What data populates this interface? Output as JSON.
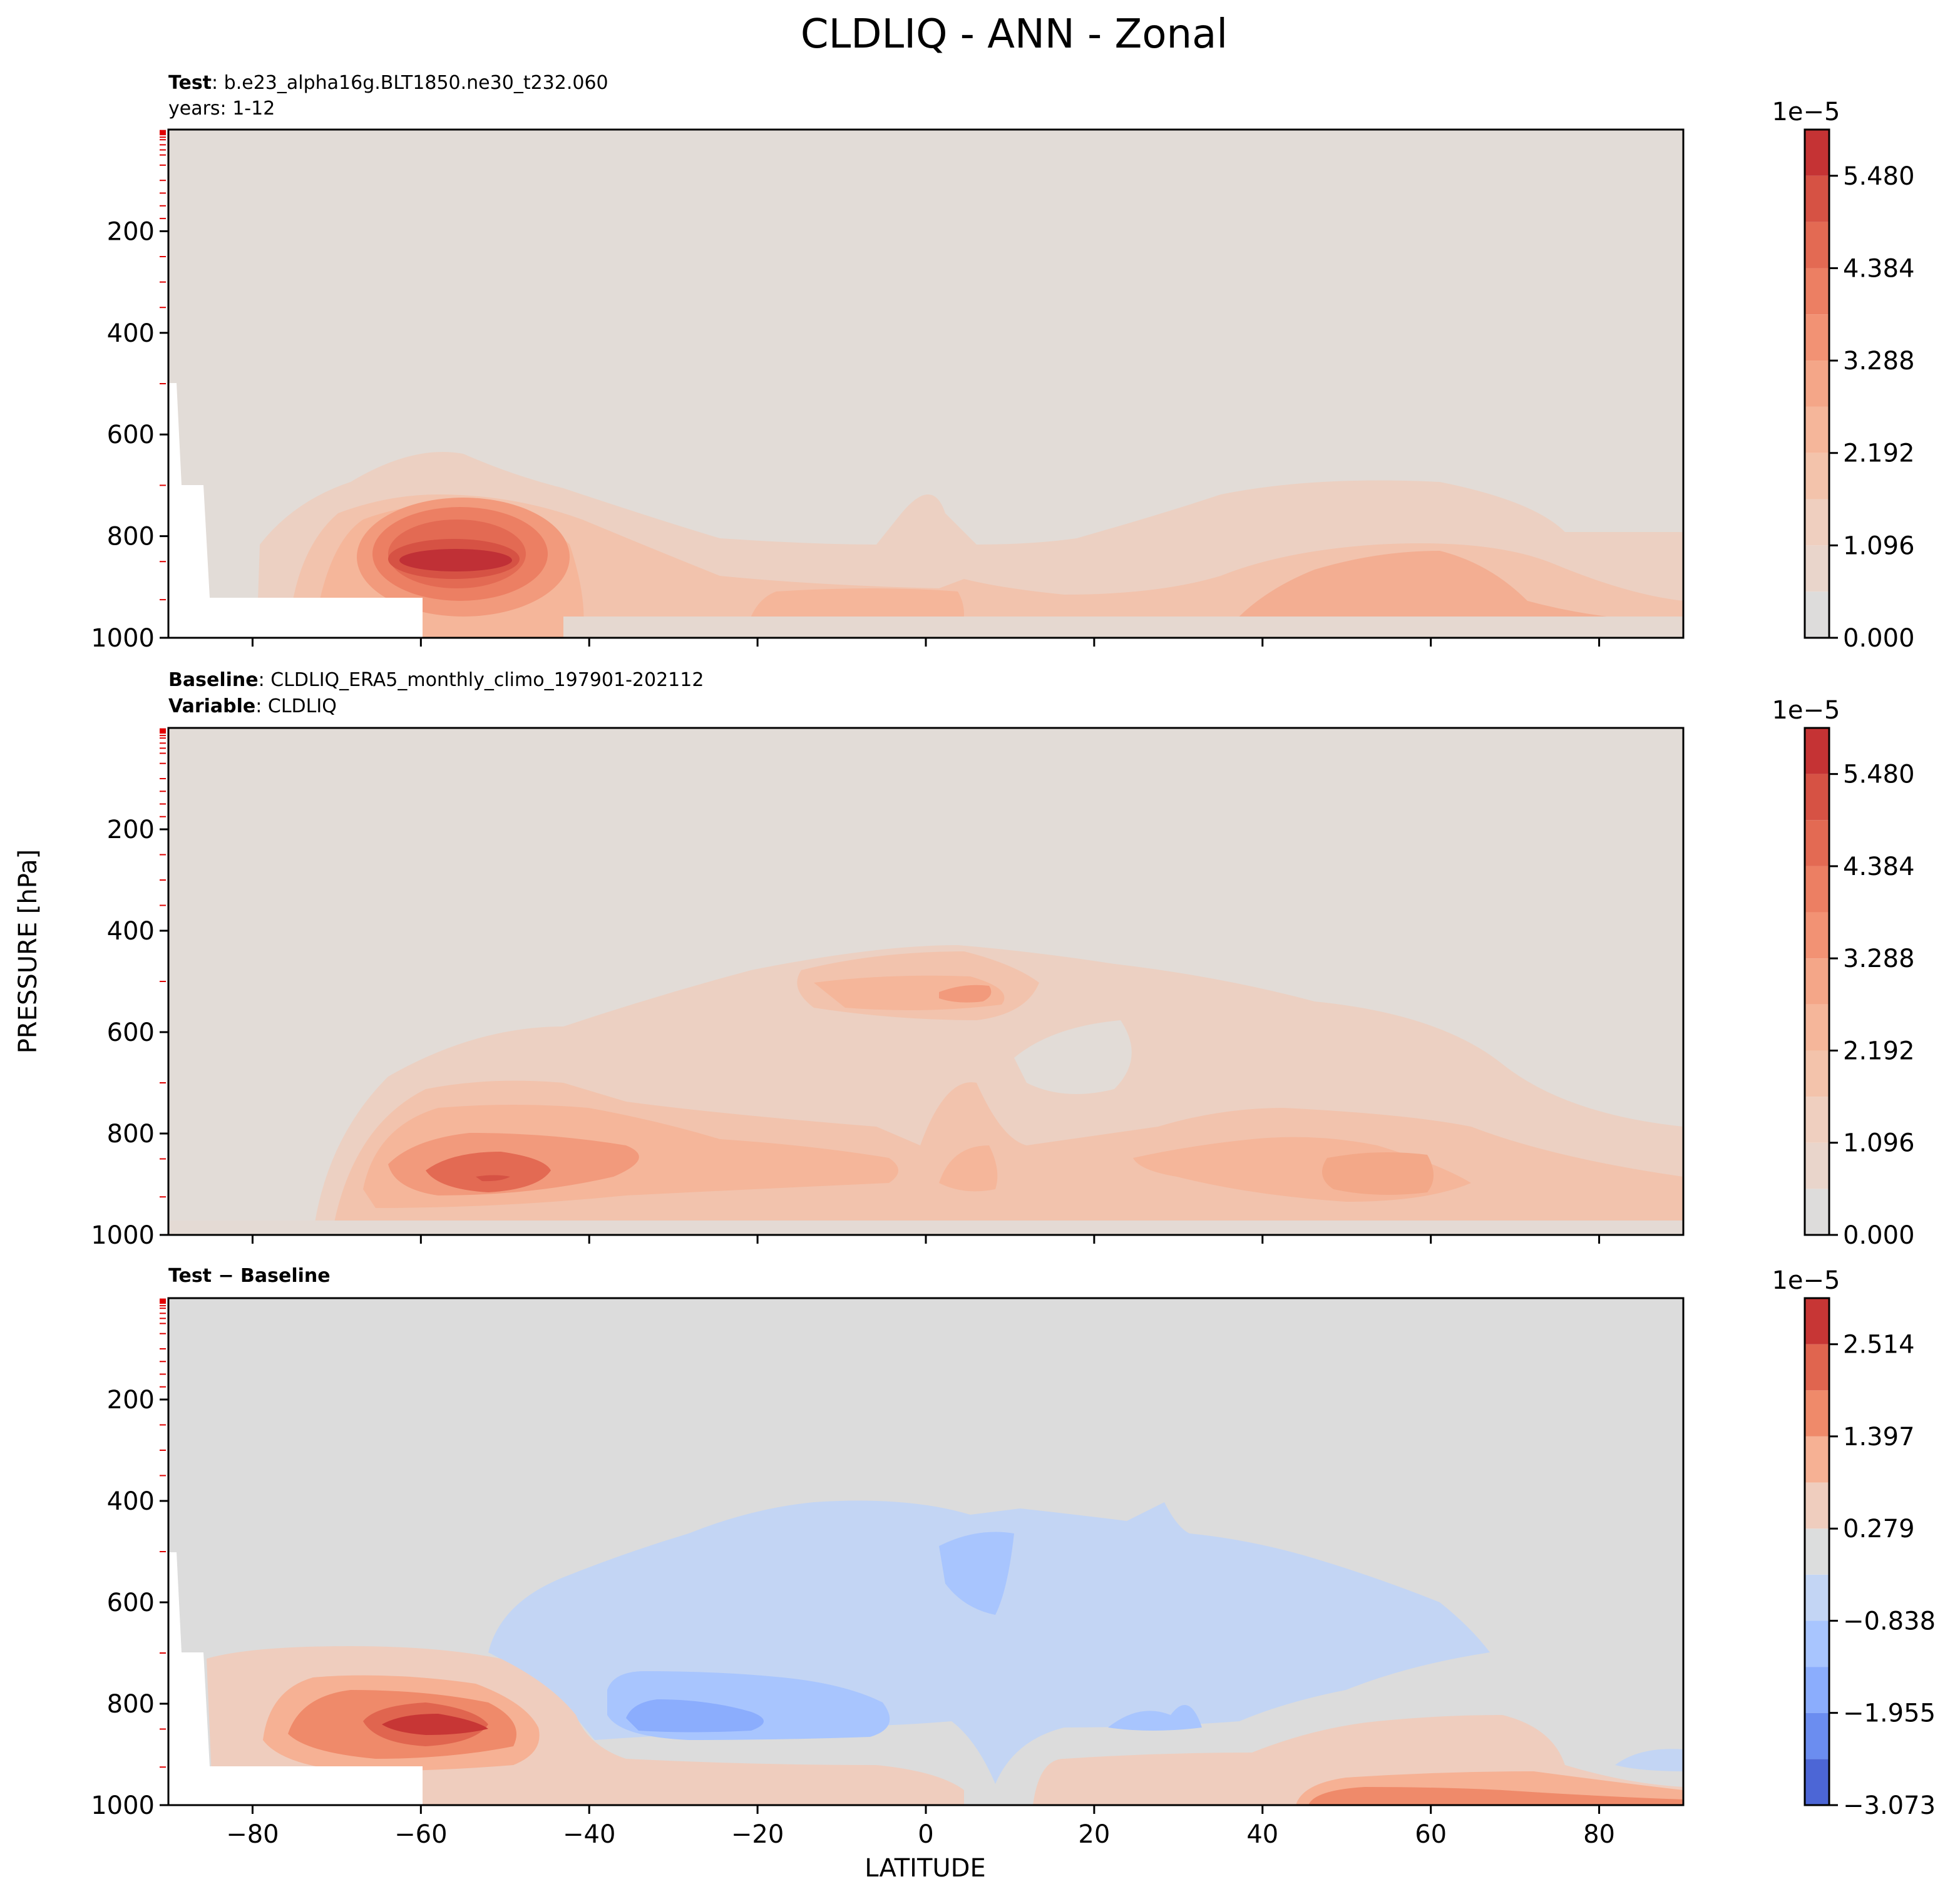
{
  "figure": {
    "title": "CLDLIQ - ANN - Zonal",
    "ylabel": "PRESSURE [hPa]",
    "xlabel": "LATITUDE"
  },
  "panels": [
    {
      "id": "test",
      "meta_line1_bold": "Test",
      "meta_line1_text": ": b.e23_alpha16g.BLT1850.ne30_t232.060",
      "meta_line2_bold": "",
      "meta_line2_text": "years: 1-12",
      "colorbar_exponent": "1e−5",
      "colorbar_ticks": [
        "0.000",
        "1.096",
        "2.192",
        "3.288",
        "4.384",
        "5.480"
      ]
    },
    {
      "id": "baseline",
      "meta_line1_bold": "Baseline",
      "meta_line1_text": ": CLDLIQ_ERA5_monthly_climo_197901-202112",
      "meta_line2_bold": "Variable",
      "meta_line2_text": ": CLDLIQ",
      "colorbar_exponent": "1e−5",
      "colorbar_ticks": [
        "0.000",
        "1.096",
        "2.192",
        "3.288",
        "4.384",
        "5.480"
      ]
    },
    {
      "id": "diff",
      "meta_line1_bold": "Test − Baseline",
      "meta_line1_text": "",
      "meta_line2_bold": "",
      "meta_line2_text": "",
      "colorbar_exponent": "1e−5",
      "colorbar_ticks": [
        "−3.073",
        "−1.955",
        "−0.838",
        "0.279",
        "1.397",
        "2.514"
      ]
    }
  ],
  "chart_data": [
    {
      "type": "contour",
      "panel": "Test",
      "x_axis": {
        "label": "LATITUDE",
        "range": [
          -90,
          90
        ],
        "ticks": [
          -80,
          -60,
          -40,
          -20,
          0,
          20,
          40,
          60,
          80
        ]
      },
      "y_axis": {
        "label": "PRESSURE [hPa]",
        "range": [
          1000,
          0
        ],
        "inverted": true,
        "ticks": [
          200,
          400,
          600,
          800,
          1000
        ]
      },
      "levels": [
        0.0,
        0.548,
        1.096,
        1.644,
        2.192,
        2.74,
        3.288,
        3.836,
        4.384,
        4.932,
        5.48,
        6.028
      ],
      "colors": [
        "#dddcdb",
        "#e9d5cb",
        "#efcfbf",
        "#f3c3ab",
        "#f5b69a",
        "#f4a688",
        "#f29274",
        "#ec7f63",
        "#e36a53",
        "#d65244",
        "#c53334",
        "#b40426"
      ],
      "features": [
        {
          "name": "Southern Ocean low-level maximum",
          "lat_center": -55,
          "pressure_center": 850,
          "peak_value": 5.8
        },
        {
          "name": "Arctic low-level maximum",
          "lat_center": 55,
          "pressure_center": 900,
          "peak_value": 2.9
        }
      ],
      "colorbar": {
        "exponent": "1e-5",
        "ticks": [
          0.0,
          1.096,
          2.192,
          3.288,
          4.384,
          5.48
        ]
      }
    },
    {
      "type": "contour",
      "panel": "Baseline",
      "x_axis": {
        "label": "LATITUDE",
        "range": [
          -90,
          90
        ],
        "ticks": [
          -80,
          -60,
          -40,
          -20,
          0,
          20,
          40,
          60,
          80
        ]
      },
      "y_axis": {
        "label": "PRESSURE [hPa]",
        "range": [
          1000,
          0
        ],
        "inverted": true,
        "ticks": [
          200,
          400,
          600,
          800,
          1000
        ]
      },
      "levels": [
        0.0,
        0.548,
        1.096,
        1.644,
        2.192,
        2.74,
        3.288,
        3.836,
        4.384,
        4.932,
        5.48,
        6.028
      ],
      "colors": [
        "#dddcdb",
        "#e9d5cb",
        "#efcfbf",
        "#f3c3ab",
        "#f5b69a",
        "#f4a688",
        "#f29274",
        "#ec7f63",
        "#e36a53",
        "#d65244",
        "#c53334",
        "#b40426"
      ],
      "features": [
        {
          "name": "Southern Ocean low-level maximum",
          "lat_center": -52,
          "pressure_center": 890,
          "peak_value": 4.6
        },
        {
          "name": "Tropical mid-level maximum",
          "lat_center": 5,
          "pressure_center": 550,
          "peak_value": 2.5
        },
        {
          "name": "Arctic low-level maximum",
          "lat_center": 58,
          "pressure_center": 880,
          "peak_value": 2.3
        }
      ],
      "colorbar": {
        "exponent": "1e-5",
        "ticks": [
          0.0,
          1.096,
          2.192,
          3.288,
          4.384,
          5.48
        ]
      }
    },
    {
      "type": "contour",
      "panel": "Test − Baseline",
      "x_axis": {
        "label": "LATITUDE",
        "range": [
          -90,
          90
        ],
        "ticks": [
          -80,
          -60,
          -40,
          -20,
          0,
          20,
          40,
          60,
          80
        ]
      },
      "y_axis": {
        "label": "PRESSURE [hPa]",
        "range": [
          1000,
          0
        ],
        "inverted": true,
        "ticks": [
          200,
          400,
          600,
          800,
          1000
        ]
      },
      "levels": [
        -3.073,
        -2.514,
        -1.955,
        -1.397,
        -0.838,
        -0.279,
        0.279,
        0.838,
        1.397,
        1.955,
        2.514,
        3.073
      ],
      "colors": [
        "#4c66d6",
        "#6b8df0",
        "#8badfd",
        "#a8c5fe",
        "#c3d5f4",
        "#dcdddd",
        "#efcdbe",
        "#f6b194",
        "#ef8a6a",
        "#e0654f",
        "#c73635"
      ],
      "features": [
        {
          "name": "Southern Ocean positive bias",
          "lat_center": -57,
          "pressure_center": 850,
          "peak_value": 2.6
        },
        {
          "name": "Subtropical negative bias",
          "lat_center": -25,
          "pressure_center": 830,
          "peak_value": -1.6
        },
        {
          "name": "Broad mid-level negative bias",
          "lat_center": 10,
          "pressure_center": 650,
          "peak_value": -0.9
        },
        {
          "name": "Arctic near-surface positive bias",
          "lat_center": 55,
          "pressure_center": 990,
          "peak_value": 2.0
        }
      ],
      "colorbar": {
        "exponent": "1e-5",
        "ticks": [
          -3.073,
          -1.955,
          -0.838,
          0.279,
          1.397,
          2.514
        ]
      }
    }
  ]
}
